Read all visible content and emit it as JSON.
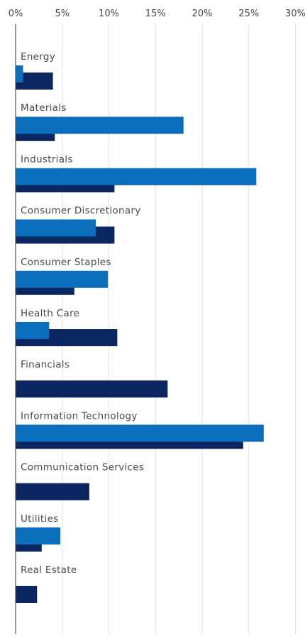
{
  "chart_data": {
    "type": "bar",
    "orientation": "horizontal",
    "categories": [
      "Energy",
      "Materials",
      "Industrials",
      "Consumer Discretionary",
      "Consumer Staples",
      "Health Care",
      "Financials",
      "Information Technology",
      "Communication Services",
      "Utilities",
      "Real Estate"
    ],
    "series": [
      {
        "color": "#0A6EBD",
        "values": [
          0.8,
          18.0,
          25.8,
          8.6,
          9.9,
          3.6,
          0.0,
          26.6,
          0.0,
          4.8,
          0.0
        ]
      },
      {
        "color": "#0B2660",
        "values": [
          4.0,
          4.2,
          10.6,
          10.6,
          6.3,
          10.9,
          16.3,
          24.4,
          7.9,
          2.8,
          2.3
        ]
      }
    ],
    "x_ticks": [
      "0%",
      "5%",
      "10%",
      "15%",
      "20%",
      "25%",
      "30%"
    ],
    "xlim": [
      0,
      30
    ],
    "axis_position": "top",
    "grid": true,
    "legend": "none",
    "colors": {
      "grid": "#D8E2EE",
      "axis": "#555555",
      "label": "#4A4A4A"
    }
  }
}
